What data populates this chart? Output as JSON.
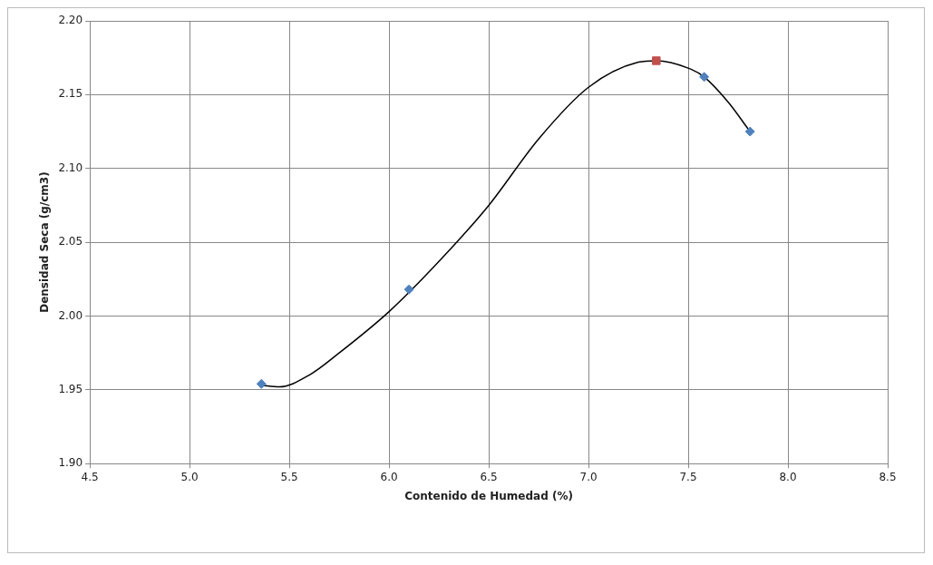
{
  "chart_data": {
    "type": "scatter",
    "xlabel": "Contenido de Humedad (%)",
    "ylabel": "Densidad Seca (g/cm3)",
    "xlim": [
      4.5,
      8.5
    ],
    "xticks": [
      {
        "value": 4.5,
        "label": "4.5"
      },
      {
        "value": 5,
        "label": "5.0"
      },
      {
        "value": 5.5,
        "label": "5.5"
      },
      {
        "value": 6,
        "label": "6.0"
      },
      {
        "value": 6.5,
        "label": "6.5"
      },
      {
        "value": 7,
        "label": "7.0"
      },
      {
        "value": 7.5,
        "label": "7.5"
      },
      {
        "value": 8,
        "label": "8.0"
      },
      {
        "value": 8.5,
        "label": "8.5"
      }
    ],
    "ylim": [
      1.9,
      2.2
    ],
    "yticks": [
      {
        "value": 1.9,
        "label": "1.90"
      },
      {
        "value": 1.95,
        "label": "1.95"
      },
      {
        "value": 2,
        "label": "2.00"
      },
      {
        "value": 2.05,
        "label": "2.05"
      },
      {
        "value": 2.1,
        "label": "2.10"
      },
      {
        "value": 2.15,
        "label": "2.15"
      },
      {
        "value": 2.2,
        "label": "2.20"
      }
    ],
    "grid": true,
    "legend": false,
    "series": [
      {
        "type": "line",
        "color": "#000000",
        "marker": "none",
        "x": [
          5.36,
          5.45,
          5.6,
          5.75,
          6.0,
          6.25,
          6.5,
          6.75,
          7.0,
          7.25,
          7.34,
          7.5,
          7.58,
          7.7,
          7.81
        ],
        "values": [
          1.953,
          1.952,
          1.96,
          1.975,
          2.003,
          2.037,
          2.075,
          2.12,
          2.155,
          2.172,
          2.173,
          2.168,
          2.162,
          2.145,
          2.125
        ]
      },
      {
        "type": "scatter",
        "color": "#4f81bd",
        "marker": "diamond",
        "x": [
          5.36,
          6.1,
          7.58,
          7.81
        ],
        "values": [
          1.954,
          2.018,
          2.162,
          2.125
        ]
      },
      {
        "type": "scatter",
        "color": "#c0504d",
        "marker": "square",
        "x": [
          7.34
        ],
        "values": [
          2.173
        ]
      }
    ]
  }
}
